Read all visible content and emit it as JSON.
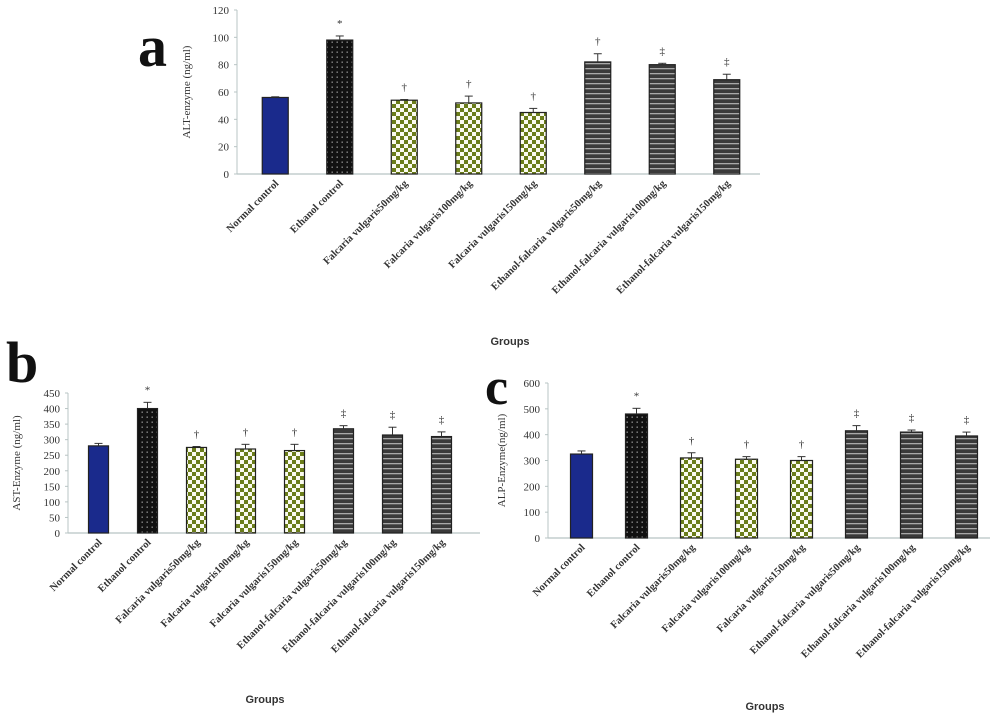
{
  "colors": {
    "normal": "#1a2a8c",
    "ethanol": "#1a1a1a",
    "falcaria_dot": "#6b7d1a",
    "combo_stripe": "#3a3a3a",
    "axis": "#b8c4c4"
  },
  "chart_data": [
    {
      "type": "bar",
      "panel": "a",
      "title": "",
      "xlabel": "Groups",
      "ylabel": "ALT-enzyme  (ng/ml)",
      "ylim": [
        0,
        120
      ],
      "yticks": [
        "0",
        "20",
        "40",
        "60",
        "80",
        "100",
        "120"
      ],
      "categories": [
        "Normal control",
        "Ethanol control",
        "Falcaria vulgaris50mg/kg",
        "Falcaria vulgaris100mg/kg",
        "Falcaria vulgaris150mg/kg",
        "Ethanol-falcaria vulgaris50mg/kg",
        "Ethanol-falcaria vulgaris100mg/kg",
        "Ethanol-falcaria vulgaris150mg/kg"
      ],
      "values": [
        56,
        98,
        54,
        52,
        45,
        82,
        80,
        69
      ],
      "errors": [
        0.5,
        3,
        0.5,
        5,
        3,
        6,
        1,
        4
      ],
      "markers": [
        "",
        "*",
        "†",
        "†",
        "†",
        "†",
        "‡",
        "‡"
      ]
    },
    {
      "type": "bar",
      "panel": "b",
      "title": "",
      "xlabel": "Groups",
      "ylabel": "AST-Enzyme  (ng/ml)",
      "ylim": [
        0,
        450
      ],
      "yticks": [
        "0",
        "50",
        "100",
        "150",
        "200",
        "250",
        "300",
        "350",
        "400",
        "450"
      ],
      "categories": [
        "Normal control",
        "Ethanol control",
        "Falcaria vulgaris50mg/kg",
        "Falcaria vulgaris100mg/kg",
        "Falcaria vulgaris150mg/kg",
        "Ethanol-falcaria vulgaris50mg/kg",
        "Ethanol-falcaria vulgaris100mg/kg",
        "Ethanol-falcaria vulgaris150mg/kg"
      ],
      "values": [
        280,
        400,
        275,
        270,
        265,
        335,
        315,
        310
      ],
      "errors": [
        8,
        20,
        3,
        15,
        20,
        10,
        25,
        15
      ],
      "markers": [
        "",
        "*",
        "†",
        "†",
        "†",
        "‡",
        "‡",
        "‡"
      ]
    },
    {
      "type": "bar",
      "panel": "c",
      "title": "",
      "xlabel": "Groups",
      "ylabel": "ALP-Enzyme(ng/ml)",
      "ylim": [
        0,
        600
      ],
      "yticks": [
        "0",
        "100",
        "200",
        "300",
        "400",
        "500",
        "600"
      ],
      "categories": [
        "Normal control",
        "Ethanol control",
        "Falcaria vulgaris50mg/kg",
        "Falcaria vulgaris100mg/kg",
        "Falcaria vulgaris150mg/kg",
        "Ethanol-falcaria vulgaris50mg/kg",
        "Ethanol-falcaria vulgaris100mg/kg",
        "Ethanol-falcaria vulgaris150mg/kg"
      ],
      "values": [
        325,
        480,
        310,
        305,
        300,
        415,
        410,
        395
      ],
      "errors": [
        12,
        22,
        20,
        10,
        15,
        20,
        8,
        15
      ],
      "markers": [
        "",
        "*",
        "†",
        "†",
        "†",
        "‡",
        "‡",
        "‡"
      ]
    }
  ]
}
